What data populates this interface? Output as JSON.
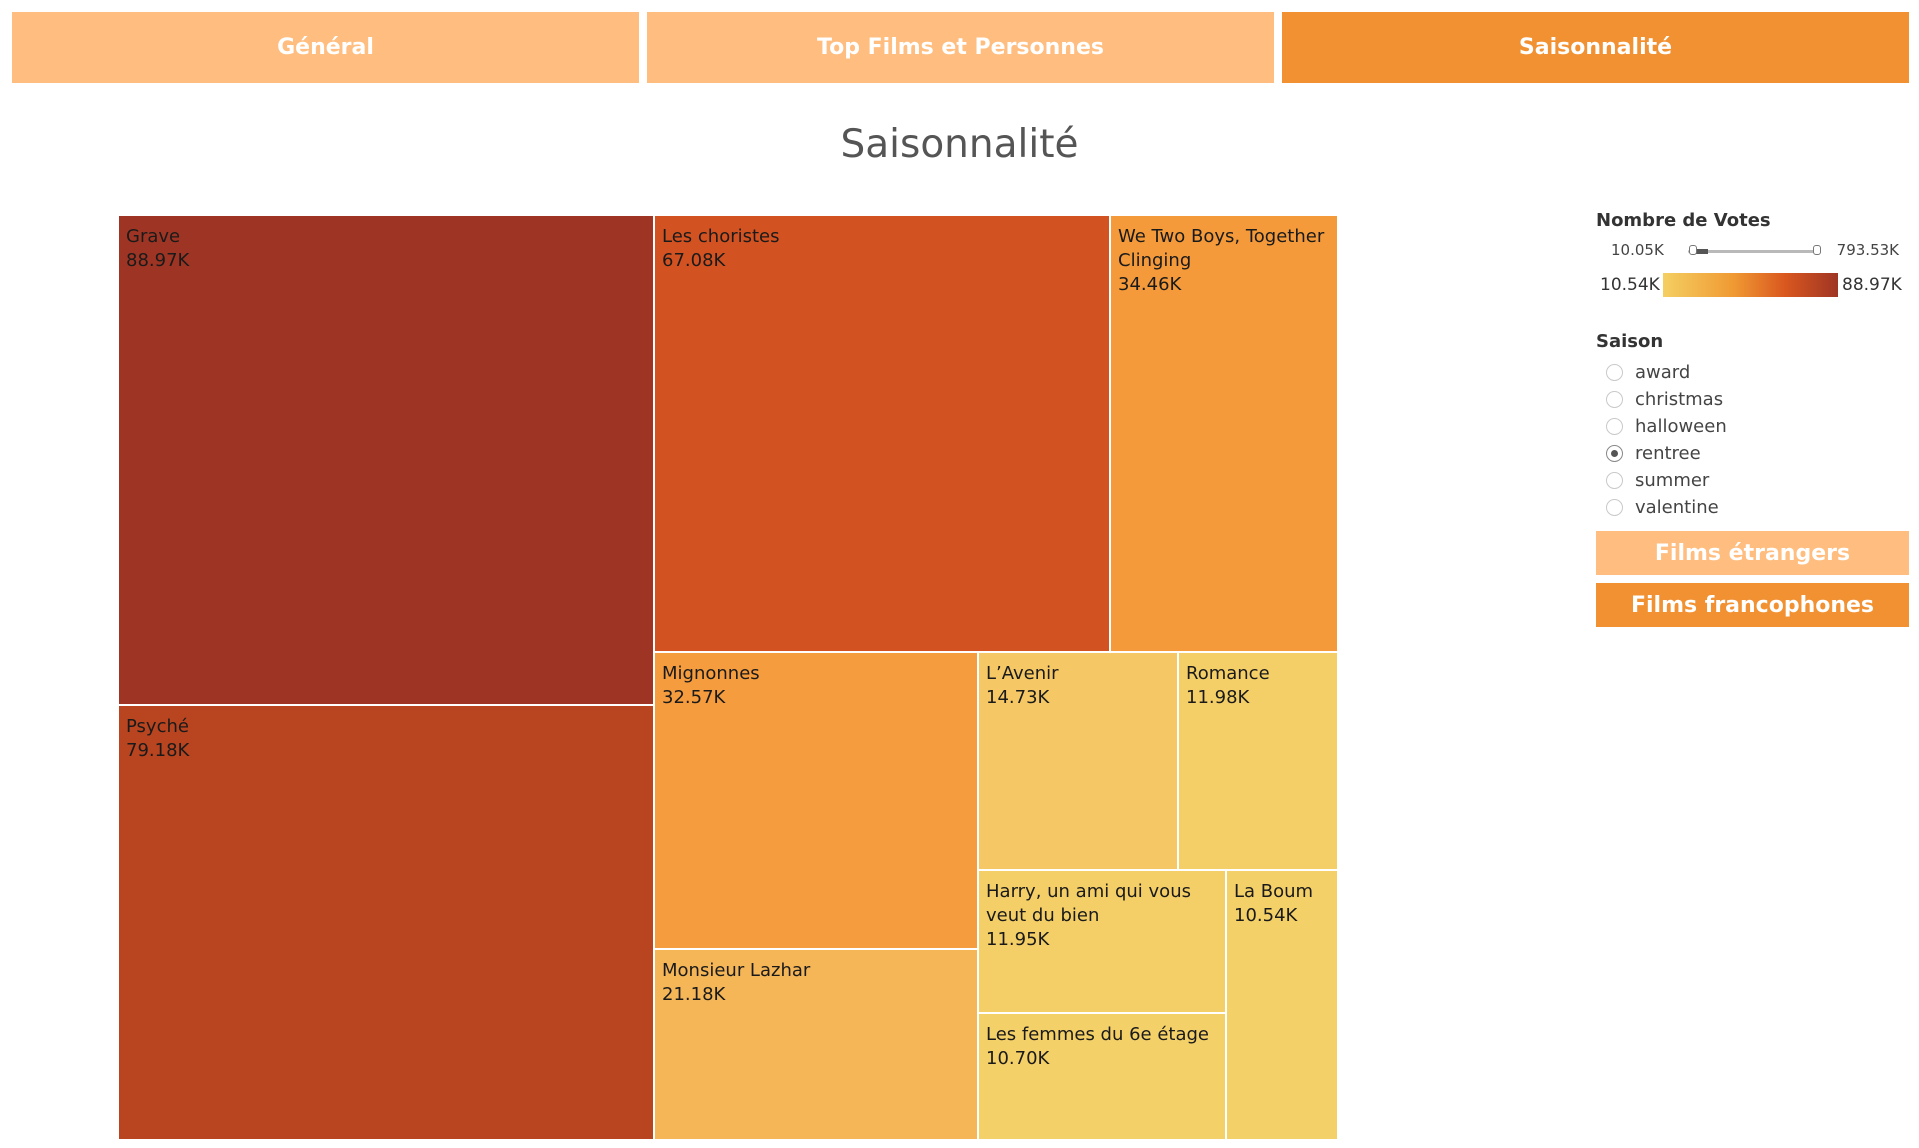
{
  "tabs": [
    {
      "label": "Général",
      "color": "#ffbe7f"
    },
    {
      "label": "Top Films et Personnes",
      "color": "#ffbe7f"
    },
    {
      "label": "Saisonnalité",
      "color": "#f29132",
      "active": true
    }
  ],
  "page_title": "Saisonnalité",
  "chart_data": {
    "type": "treemap",
    "measure": "Nombre de Votes",
    "items": [
      {
        "name": "Grave",
        "value_label": "88.97K",
        "value": 88970,
        "color": "#9e3524"
      },
      {
        "name": "Psyché",
        "value_label": "79.18K",
        "value": 79180,
        "color": "#b84420"
      },
      {
        "name": "Les choristes",
        "value_label": "67.08K",
        "value": 67080,
        "color": "#d35222"
      },
      {
        "name": "We Two Boys, Together Clinging",
        "value_label": "34.46K",
        "value": 34460,
        "color": "#f49a3b"
      },
      {
        "name": "Mignonnes",
        "value_label": "32.57K",
        "value": 32570,
        "color": "#f59c3e"
      },
      {
        "name": "Monsieur Lazhar",
        "value_label": "21.18K",
        "value": 21180,
        "color": "#f5b658"
      },
      {
        "name": "L’Avenir",
        "value_label": "14.73K",
        "value": 14730,
        "color": "#f5c865"
      },
      {
        "name": "Romance",
        "value_label": "11.98K",
        "value": 11980,
        "color": "#f4cf68"
      },
      {
        "name": "Harry, un ami qui vous veut du bien",
        "value_label": "11.95K",
        "value": 11950,
        "color": "#f4cf68"
      },
      {
        "name": "Les femmes du 6e étage",
        "value_label": "10.70K",
        "value": 10700,
        "color": "#f4d068"
      },
      {
        "name": "La Boum",
        "value_label": "10.54K",
        "value": 10540,
        "color": "#f4d168"
      }
    ]
  },
  "filter": {
    "title": "Nombre de Votes",
    "range_min": "10.05K",
    "range_max": "793.53K"
  },
  "legend": {
    "min": "10.54K",
    "max": "88.97K"
  },
  "saison": {
    "title": "Saison",
    "options": [
      {
        "label": "award",
        "selected": false
      },
      {
        "label": "christmas",
        "selected": false
      },
      {
        "label": "halloween",
        "selected": false
      },
      {
        "label": "rentree",
        "selected": true
      },
      {
        "label": "summer",
        "selected": false
      },
      {
        "label": "valentine",
        "selected": false
      }
    ]
  },
  "buttons": {
    "etrangers": {
      "label": "Films étrangers",
      "color": "#ffbe7f"
    },
    "francophones": {
      "label": "Films francophones",
      "color": "#f29132"
    }
  }
}
